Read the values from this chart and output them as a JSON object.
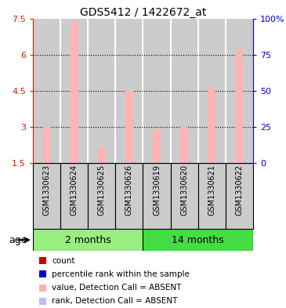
{
  "title": "GDS5412 / 1422672_at",
  "samples": [
    "GSM1330623",
    "GSM1330624",
    "GSM1330625",
    "GSM1330626",
    "GSM1330619",
    "GSM1330620",
    "GSM1330621",
    "GSM1330622"
  ],
  "bar_values": [
    3.0,
    7.4,
    2.1,
    4.5,
    2.85,
    3.0,
    4.6,
    6.2
  ],
  "rank_heights": [
    0.04,
    0.07,
    0.04,
    0.055,
    0.04,
    0.04,
    0.09,
    0.07
  ],
  "bar_color_absent": "#FFB3B3",
  "rank_color_absent": "#BBBBFF",
  "ylim_left": [
    1.5,
    7.5
  ],
  "ylim_right": [
    0,
    100
  ],
  "y_ticks_left": [
    1.5,
    3.0,
    4.5,
    6.0,
    7.5
  ],
  "y_ticks_right": [
    0,
    25,
    50,
    75,
    100
  ],
  "y_tick_labels_left": [
    "1.5",
    "3",
    "4.5",
    "6",
    "7.5"
  ],
  "y_tick_labels_right": [
    "0",
    "25",
    "50",
    "75",
    "100%"
  ],
  "group1_label": "2 months",
  "group2_label": "14 months",
  "group1_color": "#98EE80",
  "group2_color": "#44DD44",
  "age_label": "age",
  "legend_items": [
    {
      "color": "#CC0000",
      "label": "count"
    },
    {
      "color": "#0000CC",
      "label": "percentile rank within the sample"
    },
    {
      "color": "#FFB3B3",
      "label": "value, Detection Call = ABSENT"
    },
    {
      "color": "#BBBBFF",
      "label": "rank, Detection Call = ABSENT"
    }
  ],
  "axis_left_color": "#CC2200",
  "axis_right_color": "#0000CC",
  "bar_bottom": 1.5,
  "bar_width": 0.28,
  "rank_bar_width": 0.1,
  "col_bg_color": "#CCCCCC",
  "col_border_color": "#FFFFFF",
  "sample_name_fontsize": 7.0
}
